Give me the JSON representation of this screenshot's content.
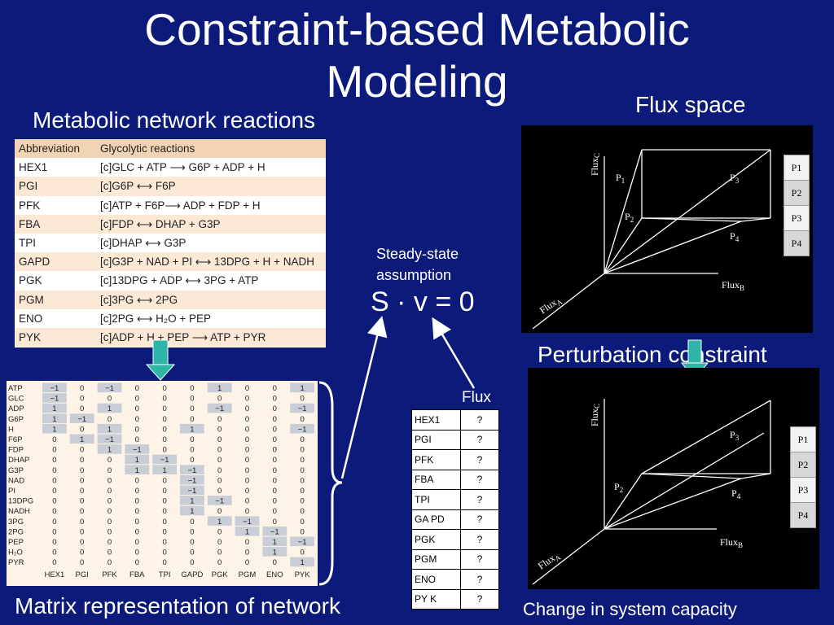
{
  "title_line1": "Constraint-based Metabolic",
  "title_line2": "Modeling",
  "headings": {
    "network": "Metabolic network reactions",
    "flux_space": "Flux space",
    "perturbation": "Perturbation constraint",
    "matrix": "Matrix representation of network",
    "capacity": "Change in system capacity",
    "steady1": "Steady-state",
    "steady2": "assumption",
    "equation": "S · v = 0",
    "flux": "Flux"
  },
  "reactions": {
    "header": {
      "abbr": "Abbreviation",
      "eq": "Glycolytic reactions"
    },
    "rows": [
      {
        "abbr": "HEX1",
        "eq": "[c]GLC + ATP ⟶ G6P + ADP + H"
      },
      {
        "abbr": "PGI",
        "eq": "[c]G6P ⟷ F6P"
      },
      {
        "abbr": "PFK",
        "eq": "[c]ATP + F6P⟶ ADP + FDP + H"
      },
      {
        "abbr": "FBA",
        "eq": "[c]FDP ⟷ DHAP + G3P"
      },
      {
        "abbr": "TPI",
        "eq": "[c]DHAP ⟷ G3P"
      },
      {
        "abbr": "GAPD",
        "eq": "[c]G3P + NAD + PI ⟷ 13DPG + H + NADH"
      },
      {
        "abbr": "PGK",
        "eq": "[c]13DPG + ADP ⟷ 3PG + ATP"
      },
      {
        "abbr": "PGM",
        "eq": "[c]3PG ⟷ 2PG"
      },
      {
        "abbr": "ENO",
        "eq": "[c]2PG ⟷ H₂O + PEP"
      },
      {
        "abbr": "PYK",
        "eq": "[c]ADP + H + PEP ⟶ ATP + PYR"
      }
    ]
  },
  "matrix": {
    "metabolites": [
      "ATP",
      "GLC",
      "ADP",
      "G6P",
      "H",
      "F6P",
      "FDP",
      "DHAP",
      "G3P",
      "NAD",
      "PI",
      "13DPG",
      "NADH",
      "3PG",
      "2PG",
      "PEP",
      "H₂O",
      "PYR"
    ],
    "reactions": [
      "HEX1",
      "PGI",
      "PFK",
      "FBA",
      "TPI",
      "GAPD",
      "PGK",
      "PGM",
      "ENO",
      "PYK"
    ],
    "values": [
      [
        "−1",
        "0",
        "−1",
        "0",
        "0",
        "0",
        "1",
        "0",
        "0",
        "1"
      ],
      [
        "−1",
        "0",
        "0",
        "0",
        "0",
        "0",
        "0",
        "0",
        "0",
        "0"
      ],
      [
        "1",
        "0",
        "1",
        "0",
        "0",
        "0",
        "−1",
        "0",
        "0",
        "−1"
      ],
      [
        "1",
        "−1",
        "0",
        "0",
        "0",
        "0",
        "0",
        "0",
        "0",
        "0"
      ],
      [
        "1",
        "0",
        "1",
        "0",
        "0",
        "1",
        "0",
        "0",
        "0",
        "−1"
      ],
      [
        "0",
        "1",
        "−1",
        "0",
        "0",
        "0",
        "0",
        "0",
        "0",
        "0"
      ],
      [
        "0",
        "0",
        "1",
        "−1",
        "0",
        "0",
        "0",
        "0",
        "0",
        "0"
      ],
      [
        "0",
        "0",
        "0",
        "1",
        "−1",
        "0",
        "0",
        "0",
        "0",
        "0"
      ],
      [
        "0",
        "0",
        "0",
        "1",
        "1",
        "−1",
        "0",
        "0",
        "0",
        "0"
      ],
      [
        "0",
        "0",
        "0",
        "0",
        "0",
        "−1",
        "0",
        "0",
        "0",
        "0"
      ],
      [
        "0",
        "0",
        "0",
        "0",
        "0",
        "−1",
        "0",
        "0",
        "0",
        "0"
      ],
      [
        "0",
        "0",
        "0",
        "0",
        "0",
        "1",
        "−1",
        "0",
        "0",
        "0"
      ],
      [
        "0",
        "0",
        "0",
        "0",
        "0",
        "1",
        "0",
        "0",
        "0",
        "0"
      ],
      [
        "0",
        "0",
        "0",
        "0",
        "0",
        "0",
        "1",
        "−1",
        "0",
        "0"
      ],
      [
        "0",
        "0",
        "0",
        "0",
        "0",
        "0",
        "0",
        "1",
        "−1",
        "0"
      ],
      [
        "0",
        "0",
        "0",
        "0",
        "0",
        "0",
        "0",
        "0",
        "1",
        "−1"
      ],
      [
        "0",
        "0",
        "0",
        "0",
        "0",
        "0",
        "0",
        "0",
        "1",
        "0"
      ],
      [
        "0",
        "0",
        "0",
        "0",
        "0",
        "0",
        "0",
        "0",
        "0",
        "1"
      ]
    ]
  },
  "flux_table": [
    {
      "name": "HEX1",
      "value": "?"
    },
    {
      "name": "PGI",
      "value": "?"
    },
    {
      "name": "PFK",
      "value": "?"
    },
    {
      "name": "FBA",
      "value": "?"
    },
    {
      "name": "TPI",
      "value": "?"
    },
    {
      "name": "GA PD",
      "value": "?"
    },
    {
      "name": "PGK",
      "value": "?"
    },
    {
      "name": "PGM",
      "value": "?"
    },
    {
      "name": "ENO",
      "value": "?"
    },
    {
      "name": "PY K",
      "value": "?"
    }
  ],
  "flux_plot": {
    "axis_a": "Flux",
    "axis_a_sub": "A",
    "axis_b": "Flux",
    "axis_b_sub": "B",
    "axis_c": "Flux",
    "axis_c_sub": "C",
    "points": [
      {
        "label": "P",
        "sub": "1"
      },
      {
        "label": "P",
        "sub": "2"
      },
      {
        "label": "P",
        "sub": "3"
      },
      {
        "label": "P",
        "sub": "4"
      }
    ],
    "legend": [
      "P1",
      "P2",
      "P3",
      "P4"
    ]
  },
  "colors": {
    "background": "#0c1a7a",
    "arrow": "#2fb4a8"
  }
}
